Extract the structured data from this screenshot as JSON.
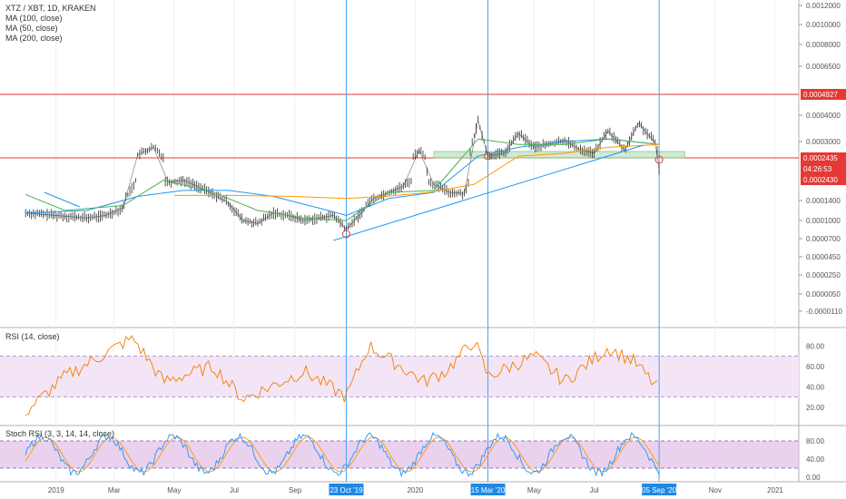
{
  "header": {
    "symbol": "XTZ / XBT, 1D, KRAKEN",
    "ma_legends": [
      "MA (100, close)",
      "MA (50, close)",
      "MA (200, close)"
    ]
  },
  "colors": {
    "background": "#ffffff",
    "candle": "#2b2b2b",
    "ma100": "#2196f3",
    "ma50": "#4caf50",
    "ma200": "#ff9800",
    "resistance": "#e53935",
    "vertical": "#42a5f5",
    "support_box": "#c8e6c9",
    "rsi_line": "#f57c00",
    "rsi_band": "#f3e5f5",
    "stoch_band": "#e1bee7",
    "stoch_k": "#2196f3",
    "stoch_d": "#ff9800",
    "label_red": "#e53935",
    "label_blue": "#1e88e5"
  },
  "price_axis": {
    "ticks": [
      "0.0012000",
      "0.0010000",
      "0.0008000",
      "0.0006500",
      "0.0004927",
      "0.0004000",
      "0.0003000",
      "0.0002435",
      "0.0002430",
      "0.0001400",
      "0.0001000",
      "0.0000700",
      "0.0000450",
      "0.0000250",
      "0.0000050",
      "-0.0000110"
    ],
    "resistance_label": "0.0004927",
    "current_label": "0.0002435",
    "countdown_label": "04:26:53",
    "support_label": "0.0002430"
  },
  "rsi_panel": {
    "title": "RSI (14, close)",
    "ticks": [
      "80.00",
      "60.00",
      "40.00",
      "20.00"
    ]
  },
  "stoch_panel": {
    "title": "Stoch RSI (3, 3, 14, 14, close)",
    "ticks": [
      "80.00",
      "40.00",
      "0.00"
    ]
  },
  "time_axis": {
    "labels": [
      "2019",
      "Mar",
      "May",
      "Jul",
      "Sep",
      "2020",
      "May",
      "Jul",
      "Nov",
      "2021"
    ],
    "highlights": [
      "23 Oct '19",
      "15 Mar '20",
      "05 Sep '20"
    ]
  },
  "chart_data": {
    "type": "line",
    "series": [
      {
        "name": "XTZ / XBT, 1D, KRAKEN",
        "x": [
          "2018-12-01",
          "2019-01-01",
          "2019-02-01",
          "2019-02-20",
          "2019-03-10",
          "2019-03-25",
          "2019-04-10",
          "2019-04-25",
          "2019-05-10",
          "2019-05-25",
          "2019-06-10",
          "2019-06-25",
          "2019-07-10",
          "2019-07-25",
          "2019-08-10",
          "2019-08-25",
          "2019-09-10",
          "2019-09-25",
          "2019-10-10",
          "2019-10-23",
          "2019-11-05",
          "2019-11-20",
          "2019-12-05",
          "2019-12-20",
          "2020-01-05",
          "2020-01-20",
          "2020-02-05",
          "2020-02-20",
          "2020-03-05",
          "2020-03-15",
          "2020-04-01",
          "2020-04-15",
          "2020-05-01",
          "2020-05-15",
          "2020-06-01",
          "2020-06-15",
          "2020-07-01",
          "2020-07-15",
          "2020-08-01",
          "2020-08-15",
          "2020-09-01",
          "2020-09-05"
        ],
        "y": [
          0.000115,
          0.00011,
          0.000105,
          0.00011,
          0.000125,
          0.000255,
          0.00028,
          0.00023,
          0.00024,
          0.00021,
          0.00017,
          0.000135,
          0.0001,
          9.5e-05,
          0.000115,
          0.00011,
          0.0001,
          0.000105,
          0.00011,
          8.5e-05,
          0.00011,
          0.00015,
          0.00018,
          0.00021,
          0.00027,
          0.00022,
          0.00018,
          0.000175,
          0.00038,
          0.00025,
          0.00026,
          0.00033,
          0.00028,
          0.00029,
          0.000305,
          0.000275,
          0.00026,
          0.00034,
          0.00027,
          0.00037,
          0.000295,
          0.0002435
        ]
      },
      {
        "name": "MA (100, close)",
        "x": [
          "2018-12-01",
          "2019-02-01",
          "2019-03-25",
          "2019-05-10",
          "2019-06-25",
          "2019-08-10",
          "2019-09-25",
          "2019-10-23",
          "2019-12-05",
          "2020-01-20",
          "2020-03-05",
          "2020-04-15",
          "2020-06-01",
          "2020-07-15",
          "2020-09-05"
        ],
        "y": [
          0.000115,
          0.00012,
          0.00016,
          0.00019,
          0.00019,
          0.00016,
          0.000125,
          0.00011,
          0.00015,
          0.00018,
          0.00025,
          0.00028,
          0.0003,
          0.00031,
          0.00029
        ]
      },
      {
        "name": "MA (50, close)",
        "x": [
          "2018-12-01",
          "2019-01-10",
          "2019-03-10",
          "2019-04-20",
          "2019-06-10",
          "2019-07-25",
          "2019-09-10",
          "2019-10-23",
          "2019-12-05",
          "2020-01-20",
          "2020-03-05",
          "2020-04-15",
          "2020-06-01",
          "2020-07-15",
          "2020-09-05"
        ],
        "y": [
          0.00017,
          0.00012,
          0.00013,
          0.00024,
          0.00018,
          0.00012,
          0.000105,
          0.0001,
          0.00018,
          0.00019,
          0.00031,
          0.00029,
          0.00029,
          0.00031,
          0.00029
        ]
      },
      {
        "name": "MA (200, close)",
        "x": [
          "2019-05-01",
          "2019-07-01",
          "2019-09-01",
          "2019-10-23",
          "2019-12-01",
          "2020-01-15",
          "2020-03-01",
          "2020-04-15",
          "2020-06-01",
          "2020-07-15",
          "2020-09-05"
        ],
        "y": [
          0.000165,
          0.000165,
          0.00016,
          0.00015,
          0.00016,
          0.00018,
          0.00022,
          0.00025,
          0.00026,
          0.00028,
          0.00029
        ]
      }
    ],
    "rsi": {
      "x": [
        "2018-12-01",
        "2019-01-10",
        "2019-03-20",
        "2019-04-20",
        "2019-06-10",
        "2019-07-10",
        "2019-09-10",
        "2019-10-23",
        "2019-11-15",
        "2020-01-10",
        "2020-02-01",
        "2020-03-01",
        "2020-03-15",
        "2020-05-01",
        "2020-06-01",
        "2020-07-15",
        "2020-08-10",
        "2020-09-05"
      ],
      "y": [
        15,
        50,
        88,
        45,
        60,
        28,
        55,
        30,
        80,
        45,
        55,
        85,
        50,
        70,
        45,
        78,
        65,
        37
      ]
    },
    "stoch_k": {
      "x": [
        "2018-12-01",
        "2019-01-15",
        "2019-03-01",
        "2019-04-15",
        "2019-06-01",
        "2019-07-15",
        "2019-09-01",
        "2019-10-23",
        "2019-12-15",
        "2020-02-01",
        "2020-03-15",
        "2020-05-01",
        "2020-06-15",
        "2020-08-01",
        "2020-09-05"
      ],
      "y": [
        10,
        80,
        15,
        85,
        20,
        80,
        10,
        90,
        20,
        85,
        10,
        80,
        15,
        85,
        10
      ]
    },
    "levels": {
      "resistance": 0.0004927,
      "support": 0.000243,
      "current": 0.0002435
    },
    "events": [
      "2019-10-23",
      "2020-03-15",
      "2020-09-05"
    ],
    "rsi_band": [
      30,
      70
    ],
    "stoch_band": [
      20,
      80
    ]
  }
}
